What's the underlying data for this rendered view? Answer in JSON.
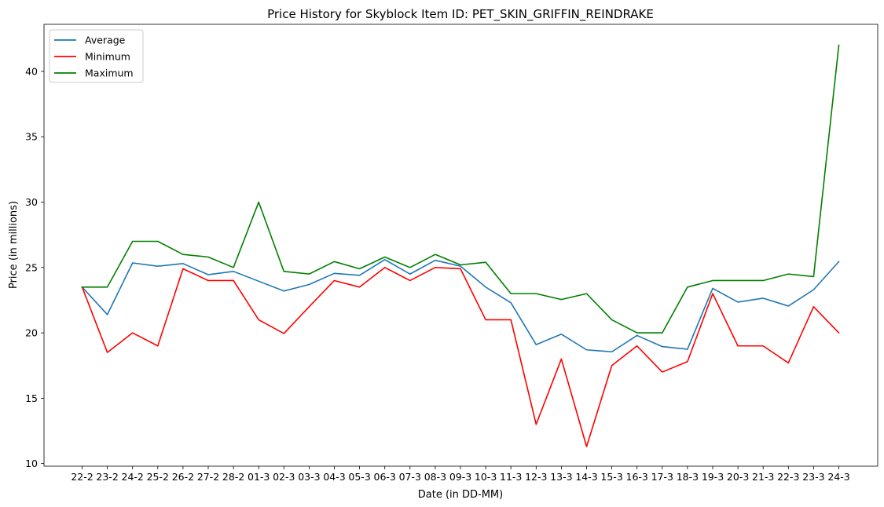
{
  "chart_data": {
    "type": "line",
    "title": "Price History for Skyblock Item ID: PET_SKIN_GRIFFIN_REINDRAKE",
    "xlabel": "Date (in DD-MM)",
    "ylabel": "Price (in millions)",
    "categories": [
      "22-2",
      "23-2",
      "24-2",
      "25-2",
      "26-2",
      "27-2",
      "28-2",
      "01-3",
      "02-3",
      "03-3",
      "04-3",
      "05-3",
      "06-3",
      "07-3",
      "08-3",
      "09-3",
      "10-3",
      "11-3",
      "12-3",
      "13-3",
      "14-3",
      "15-3",
      "16-3",
      "17-3",
      "18-3",
      "19-3",
      "20-3",
      "21-3",
      "22-3",
      "23-3",
      "24-3"
    ],
    "ylim": [
      9.8,
      43.6
    ],
    "yticks": [
      10,
      15,
      20,
      25,
      30,
      35,
      40
    ],
    "grid": false,
    "legend_position": "top-left",
    "series": [
      {
        "name": "Average",
        "color": "#1f77b4",
        "values": [
          23.5,
          21.4,
          25.35,
          25.1,
          25.3,
          24.45,
          24.7,
          23.95,
          23.2,
          23.7,
          24.55,
          24.4,
          25.6,
          24.5,
          25.55,
          25.1,
          23.5,
          22.3,
          19.1,
          19.9,
          18.7,
          18.55,
          19.8,
          18.95,
          18.75,
          23.4,
          22.35,
          22.65,
          22.05,
          23.3,
          25.45
        ]
      },
      {
        "name": "Minimum",
        "color": "#ff0000",
        "values": [
          23.5,
          18.5,
          20.0,
          19.0,
          24.9,
          24.0,
          24.0,
          21.0,
          19.95,
          22.0,
          24.0,
          23.5,
          25.0,
          24.0,
          25.0,
          24.9,
          21.0,
          21.0,
          13.0,
          18.0,
          11.3,
          17.5,
          19.0,
          17.0,
          17.8,
          23.0,
          19.0,
          19.0,
          17.7,
          22.0,
          20.0
        ]
      },
      {
        "name": "Maximum",
        "color": "#008000",
        "values": [
          23.5,
          23.5,
          27.0,
          27.0,
          26.0,
          25.8,
          25.0,
          30.0,
          24.7,
          24.5,
          25.45,
          24.9,
          25.8,
          25.0,
          26.0,
          25.2,
          25.4,
          23.0,
          23.0,
          22.55,
          23.0,
          21.0,
          20.0,
          20.0,
          23.5,
          24.0,
          24.0,
          24.0,
          24.5,
          24.3,
          42.0
        ]
      }
    ]
  }
}
